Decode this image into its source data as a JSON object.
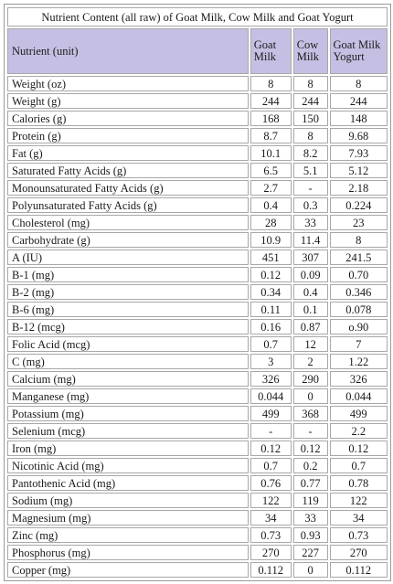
{
  "table": {
    "title": "Nutrient Content (all raw) of Goat Milk, Cow Milk and Goat Yogurt",
    "headers": [
      "Nutrient (unit)",
      "Goat Milk",
      "Cow Milk",
      "Goat Milk Yogurt"
    ],
    "rows": [
      {
        "nutrient": "Weight (oz)",
        "goat_milk": "8",
        "cow_milk": "8",
        "goat_yogurt": "8"
      },
      {
        "nutrient": "Weight (g)",
        "goat_milk": "244",
        "cow_milk": "244",
        "goat_yogurt": "244"
      },
      {
        "nutrient": "Calories (g)",
        "goat_milk": "168",
        "cow_milk": "150",
        "goat_yogurt": "148"
      },
      {
        "nutrient": "Protein (g)",
        "goat_milk": "8.7",
        "cow_milk": "8",
        "goat_yogurt": "9.68"
      },
      {
        "nutrient": "Fat (g)",
        "goat_milk": "10.1",
        "cow_milk": "8.2",
        "goat_yogurt": "7.93"
      },
      {
        "nutrient": "Saturated Fatty Acids (g)",
        "goat_milk": "6.5",
        "cow_milk": "5.1",
        "goat_yogurt": "5.12"
      },
      {
        "nutrient": "Monounsaturated Fatty Acids (g)",
        "goat_milk": "2.7",
        "cow_milk": "-",
        "goat_yogurt": "2.18"
      },
      {
        "nutrient": "Polyunsaturated Fatty Acids (g)",
        "goat_milk": "0.4",
        "cow_milk": "0.3",
        "goat_yogurt": "0.224"
      },
      {
        "nutrient": "Cholesterol (mg)",
        "goat_milk": "28",
        "cow_milk": "33",
        "goat_yogurt": "23"
      },
      {
        "nutrient": "Carbohydrate (g)",
        "goat_milk": "10.9",
        "cow_milk": "11.4",
        "goat_yogurt": "8"
      },
      {
        "nutrient": "A (IU)",
        "goat_milk": "451",
        "cow_milk": "307",
        "goat_yogurt": "241.5"
      },
      {
        "nutrient": "B-1 (mg)",
        "goat_milk": "0.12",
        "cow_milk": "0.09",
        "goat_yogurt": "0.70"
      },
      {
        "nutrient": "B-2 (mg)",
        "goat_milk": "0.34",
        "cow_milk": "0.4",
        "goat_yogurt": "0.346"
      },
      {
        "nutrient": "B-6 (mg)",
        "goat_milk": "0.11",
        "cow_milk": "0.1",
        "goat_yogurt": "0.078"
      },
      {
        "nutrient": "B-12 (mcg)",
        "goat_milk": "0.16",
        "cow_milk": "0.87",
        "goat_yogurt": "o.90"
      },
      {
        "nutrient": "Folic Acid (mcg)",
        "goat_milk": "0.7",
        "cow_milk": "12",
        "goat_yogurt": "7"
      },
      {
        "nutrient": "C (mg)",
        "goat_milk": "3",
        "cow_milk": "2",
        "goat_yogurt": "1.22"
      },
      {
        "nutrient": "Calcium (mg)",
        "goat_milk": "326",
        "cow_milk": "290",
        "goat_yogurt": "326"
      },
      {
        "nutrient": "Manganese (mg)",
        "goat_milk": "0.044",
        "cow_milk": "0",
        "goat_yogurt": "0.044"
      },
      {
        "nutrient": "Potassium (mg)",
        "goat_milk": "499",
        "cow_milk": "368",
        "goat_yogurt": "499"
      },
      {
        "nutrient": "Selenium (mcg)",
        "goat_milk": "-",
        "cow_milk": "-",
        "goat_yogurt": "2.2"
      },
      {
        "nutrient": "Iron (mg)",
        "goat_milk": "0.12",
        "cow_milk": "0.12",
        "goat_yogurt": "0.12"
      },
      {
        "nutrient": "Nicotinic Acid (mg)",
        "goat_milk": "0.7",
        "cow_milk": "0.2",
        "goat_yogurt": "0.7"
      },
      {
        "nutrient": "Pantothenic Acid (mg)",
        "goat_milk": "0.76",
        "cow_milk": "0.77",
        "goat_yogurt": "0.78"
      },
      {
        "nutrient": "Sodium (mg)",
        "goat_milk": "122",
        "cow_milk": "119",
        "goat_yogurt": "122"
      },
      {
        "nutrient": "Magnesium (mg)",
        "goat_milk": "34",
        "cow_milk": "33",
        "goat_yogurt": "34"
      },
      {
        "nutrient": "Zinc (mg)",
        "goat_milk": "0.73",
        "cow_milk": "0.93",
        "goat_yogurt": "0.73"
      },
      {
        "nutrient": "Phosphorus (mg)",
        "goat_milk": "270",
        "cow_milk": "227",
        "goat_yogurt": "270"
      },
      {
        "nutrient": "Copper (mg)",
        "goat_milk": "0.112",
        "cow_milk": "0",
        "goat_yogurt": "0.112"
      }
    ]
  },
  "colors": {
    "header_background": "#c5c0e3",
    "cell_border": "#a8a8a8"
  }
}
